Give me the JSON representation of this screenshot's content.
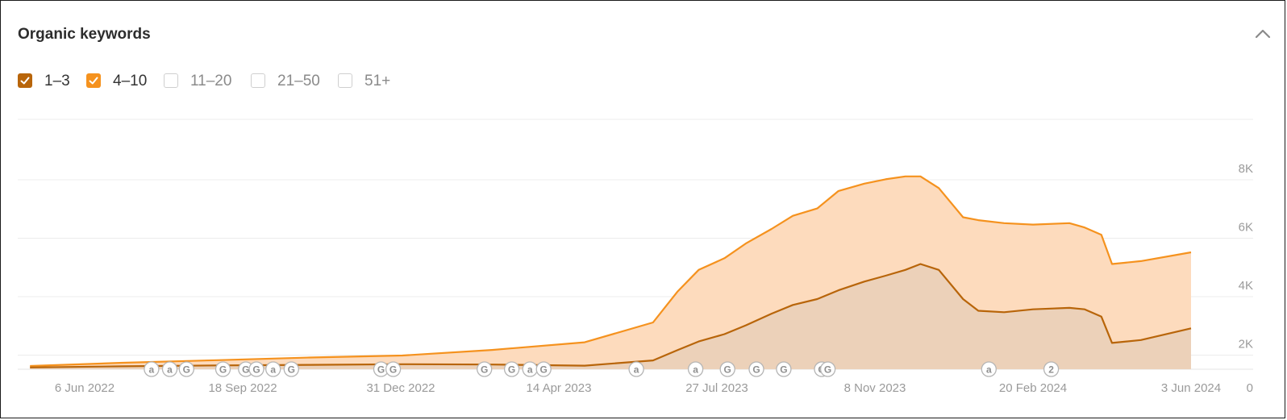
{
  "widget": {
    "title": "Organic keywords",
    "collapse_icon": "chevron-up-icon"
  },
  "legend": [
    {
      "label": "1–3",
      "checked": true,
      "color": "#b8650a"
    },
    {
      "label": "4–10",
      "checked": true,
      "color": "#f5921e"
    },
    {
      "label": "11–20",
      "checked": false,
      "color": "#cccccc"
    },
    {
      "label": "21–50",
      "checked": false,
      "color": "#cccccc"
    },
    {
      "label": "51+",
      "checked": false,
      "color": "#cccccc"
    }
  ],
  "chart_data": {
    "type": "area",
    "stacked": true,
    "title": "Organic keywords",
    "xlabel": "",
    "ylabel": "",
    "x_range": [
      "2022-05-01",
      "2024-06-03"
    ],
    "ylim": [
      0,
      8000
    ],
    "y_ticks": [
      0,
      2000,
      4000,
      6000,
      8000
    ],
    "y_tick_labels": [
      "0",
      "2K",
      "4K",
      "6K",
      "8K"
    ],
    "x_ticks": [
      "2022-06-06",
      "2022-09-18",
      "2022-12-31",
      "2023-04-14",
      "2023-07-27",
      "2023-11-08",
      "2024-02-20",
      "2024-06-03"
    ],
    "x_tick_labels": [
      "6 Jun 2022",
      "18 Sep 2022",
      "31 Dec 2022",
      "14 Apr 2023",
      "27 Jul 2023",
      "8 Nov 2023",
      "20 Feb 2024",
      "3 Jun 2024"
    ],
    "grid": true,
    "colors": {
      "pos_1_3": "#b8650a",
      "pos_4_10": "#f5921e",
      "fill_top": "#fddbbd",
      "fill_bottom": "#ecd1b9"
    },
    "series": [
      {
        "name": "1–3",
        "x": [
          "2022-05-01",
          "2022-07-01",
          "2022-09-01",
          "2022-11-01",
          "2023-01-01",
          "2023-03-01",
          "2023-05-01",
          "2023-06-15",
          "2023-07-01",
          "2023-07-15",
          "2023-08-01",
          "2023-08-15",
          "2023-09-01",
          "2023-09-15",
          "2023-10-01",
          "2023-10-15",
          "2023-11-01",
          "2023-11-15",
          "2023-11-28",
          "2023-12-08",
          "2023-12-20",
          "2024-01-05",
          "2024-01-15",
          "2024-02-01",
          "2024-02-20",
          "2024-03-15",
          "2024-03-25",
          "2024-04-05",
          "2024-04-12",
          "2024-05-01",
          "2024-06-03"
        ],
        "values": [
          60,
          100,
          130,
          150,
          170,
          160,
          120,
          300,
          650,
          950,
          1200,
          1500,
          1900,
          2200,
          2400,
          2700,
          3000,
          3200,
          3400,
          3600,
          3400,
          2400,
          2000,
          1950,
          2050,
          2100,
          2050,
          1800,
          900,
          1000,
          1400
        ]
      },
      {
        "name": "4–10",
        "x": [
          "2022-05-01",
          "2022-07-01",
          "2022-09-01",
          "2022-11-01",
          "2023-01-01",
          "2023-03-01",
          "2023-05-01",
          "2023-06-15",
          "2023-07-01",
          "2023-07-15",
          "2023-08-01",
          "2023-08-15",
          "2023-09-01",
          "2023-09-15",
          "2023-10-01",
          "2023-10-15",
          "2023-11-01",
          "2023-11-15",
          "2023-11-28",
          "2023-12-08",
          "2023-12-20",
          "2024-01-05",
          "2024-01-15",
          "2024-02-01",
          "2024-02-20",
          "2024-03-15",
          "2024-03-25",
          "2024-04-05",
          "2024-04-12",
          "2024-05-01",
          "2024-06-03"
        ],
        "values": [
          50,
          120,
          180,
          250,
          300,
          500,
          800,
          1300,
          2000,
          2450,
          2600,
          2800,
          2900,
          3050,
          3100,
          3400,
          3350,
          3300,
          3200,
          3000,
          2800,
          2800,
          3100,
          3050,
          2900,
          2900,
          2800,
          2800,
          2700,
          2700,
          2600
        ]
      }
    ],
    "annotations": [
      {
        "date": "2022-07-20",
        "label": "a"
      },
      {
        "date": "2022-08-01",
        "label": "a"
      },
      {
        "date": "2022-08-12",
        "label": "G"
      },
      {
        "date": "2022-09-05",
        "label": "G"
      },
      {
        "date": "2022-09-20",
        "label": "G"
      },
      {
        "date": "2022-09-27",
        "label": "G"
      },
      {
        "date": "2022-10-08",
        "label": "a"
      },
      {
        "date": "2022-10-20",
        "label": "G"
      },
      {
        "date": "2022-12-18",
        "label": "G"
      },
      {
        "date": "2022-12-26",
        "label": "G"
      },
      {
        "date": "2023-02-24",
        "label": "G"
      },
      {
        "date": "2023-03-14",
        "label": "G"
      },
      {
        "date": "2023-03-26",
        "label": "a"
      },
      {
        "date": "2023-04-04",
        "label": "G"
      },
      {
        "date": "2023-06-04",
        "label": "a"
      },
      {
        "date": "2023-07-13",
        "label": "a"
      },
      {
        "date": "2023-08-03",
        "label": "G"
      },
      {
        "date": "2023-08-22",
        "label": "G"
      },
      {
        "date": "2023-09-09",
        "label": "G"
      },
      {
        "date": "2023-10-04",
        "label": "G"
      },
      {
        "date": "2023-10-08",
        "label": "G"
      },
      {
        "date": "2024-01-22",
        "label": "a"
      },
      {
        "date": "2024-03-03",
        "label": "2"
      }
    ]
  }
}
